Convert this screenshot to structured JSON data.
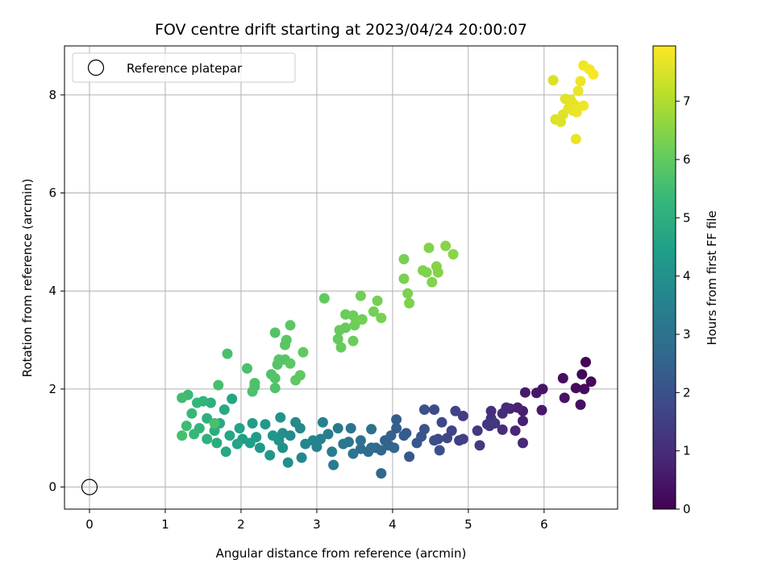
{
  "chart_data": {
    "type": "scatter",
    "title": "FOV centre drift starting at 2023/04/24 20:00:07",
    "xlabel": "Angular distance from reference (arcmin)",
    "ylabel": "Rotation from reference (arcmin)",
    "xlim": [
      -0.33,
      6.97
    ],
    "ylim": [
      -0.45,
      9.0
    ],
    "x_ticks": [
      0,
      1,
      2,
      3,
      4,
      5,
      6
    ],
    "y_ticks": [
      0,
      2,
      4,
      6,
      8
    ],
    "grid": true,
    "legend": {
      "location": "upper left",
      "entries": [
        {
          "label": "Reference platepar",
          "marker": "open-circle"
        }
      ]
    },
    "reference_point": {
      "x": 0,
      "y": 0
    },
    "colorbar": {
      "label": "Hours from first FF file",
      "colormap": "viridis",
      "range": [
        0,
        7.95
      ],
      "ticks": [
        0,
        1,
        2,
        3,
        4,
        5,
        6,
        7
      ]
    },
    "colormap_stops": [
      "#440154",
      "#482878",
      "#3e4989",
      "#31688e",
      "#26828e",
      "#1f9e89",
      "#35b779",
      "#6ece58",
      "#b5de2b",
      "#fde725"
    ],
    "points_columns": [
      "x",
      "y",
      "hours"
    ],
    "points": [
      [
        6.55,
        2.55,
        0.05
      ],
      [
        6.5,
        2.3,
        0.1
      ],
      [
        6.62,
        2.15,
        0.15
      ],
      [
        6.42,
        2.02,
        0.2
      ],
      [
        6.53,
        2.0,
        0.25
      ],
      [
        6.25,
        2.22,
        0.3
      ],
      [
        6.48,
        1.68,
        0.35
      ],
      [
        6.27,
        1.82,
        0.4
      ],
      [
        5.98,
        2.0,
        0.45
      ],
      [
        5.9,
        1.92,
        0.5
      ],
      [
        5.97,
        1.57,
        0.55
      ],
      [
        5.75,
        1.93,
        0.6
      ],
      [
        5.72,
        1.55,
        0.65
      ],
      [
        5.72,
        1.35,
        0.7
      ],
      [
        5.65,
        1.62,
        0.75
      ],
      [
        5.55,
        1.6,
        0.8
      ],
      [
        5.62,
        1.15,
        0.85
      ],
      [
        5.72,
        0.9,
        0.9
      ],
      [
        5.5,
        1.62,
        0.95
      ],
      [
        5.45,
        1.5,
        1.0
      ],
      [
        5.45,
        1.17,
        1.05
      ],
      [
        5.3,
        1.55,
        1.1
      ],
      [
        5.3,
        1.4,
        1.15
      ],
      [
        5.28,
        1.25,
        1.2
      ],
      [
        5.35,
        1.3,
        1.25
      ],
      [
        5.25,
        1.28,
        1.3
      ],
      [
        5.12,
        1.15,
        1.35
      ],
      [
        5.15,
        0.85,
        1.4
      ],
      [
        4.93,
        1.45,
        1.45
      ],
      [
        4.93,
        0.98,
        1.5
      ],
      [
        4.88,
        0.95,
        1.55
      ],
      [
        4.83,
        1.55,
        1.6
      ],
      [
        4.78,
        1.15,
        1.65
      ],
      [
        4.72,
        1.0,
        1.7
      ],
      [
        4.65,
        1.32,
        1.75
      ],
      [
        4.6,
        0.98,
        1.8
      ],
      [
        4.55,
        1.58,
        1.85
      ],
      [
        4.55,
        0.95,
        1.9
      ],
      [
        4.62,
        0.75,
        1.95
      ],
      [
        4.42,
        1.58,
        2.0
      ],
      [
        4.42,
        1.18,
        2.05
      ],
      [
        4.38,
        1.03,
        2.1
      ],
      [
        4.32,
        0.9,
        2.15
      ],
      [
        4.22,
        0.62,
        2.2
      ],
      [
        4.18,
        1.1,
        2.25
      ],
      [
        4.15,
        1.05,
        2.3
      ],
      [
        4.05,
        1.38,
        2.35
      ],
      [
        4.05,
        1.2,
        2.4
      ],
      [
        3.98,
        1.05,
        2.45
      ],
      [
        3.9,
        0.95,
        2.5
      ],
      [
        3.95,
        0.85,
        2.55
      ],
      [
        4.02,
        0.8,
        2.6
      ],
      [
        3.85,
        0.28,
        2.65
      ],
      [
        3.85,
        0.75,
        2.7
      ],
      [
        3.78,
        0.8,
        2.75
      ],
      [
        3.72,
        0.8,
        2.8
      ],
      [
        3.68,
        0.72,
        2.85
      ],
      [
        3.58,
        0.78,
        2.9
      ],
      [
        3.72,
        1.18,
        2.95
      ],
      [
        3.58,
        0.95,
        3.0
      ],
      [
        3.45,
        1.2,
        3.05
      ],
      [
        3.42,
        0.92,
        3.1
      ],
      [
        3.48,
        0.68,
        3.15
      ],
      [
        3.35,
        0.88,
        3.2
      ],
      [
        3.28,
        1.2,
        3.25
      ],
      [
        3.22,
        0.45,
        3.3
      ],
      [
        3.2,
        0.72,
        3.35
      ],
      [
        3.15,
        1.08,
        3.4
      ],
      [
        3.08,
        1.32,
        3.45
      ],
      [
        3.05,
        0.98,
        3.5
      ],
      [
        3.0,
        0.82,
        3.55
      ],
      [
        2.95,
        0.95,
        3.6
      ],
      [
        2.85,
        0.88,
        3.65
      ],
      [
        2.8,
        0.6,
        3.7
      ],
      [
        2.78,
        1.2,
        3.75
      ],
      [
        2.72,
        1.32,
        3.8
      ],
      [
        2.65,
        1.05,
        3.85
      ],
      [
        2.62,
        0.5,
        3.9
      ],
      [
        2.55,
        1.1,
        3.95
      ],
      [
        2.55,
        0.8,
        4.0
      ],
      [
        2.5,
        0.95,
        4.05
      ],
      [
        2.52,
        1.42,
        4.1
      ],
      [
        2.42,
        1.05,
        4.15
      ],
      [
        2.38,
        0.65,
        4.2
      ],
      [
        2.32,
        1.28,
        4.25
      ],
      [
        2.25,
        0.8,
        4.3
      ],
      [
        2.2,
        1.02,
        4.35
      ],
      [
        2.15,
        1.3,
        4.4
      ],
      [
        2.12,
        0.9,
        4.45
      ],
      [
        2.02,
        0.98,
        4.5
      ],
      [
        1.98,
        1.2,
        4.55
      ],
      [
        1.95,
        0.88,
        4.6
      ],
      [
        1.88,
        1.8,
        4.65
      ],
      [
        1.85,
        1.05,
        4.7
      ],
      [
        1.8,
        0.72,
        4.75
      ],
      [
        1.78,
        1.58,
        4.8
      ],
      [
        1.72,
        1.3,
        4.85
      ],
      [
        1.68,
        0.9,
        4.9
      ],
      [
        1.65,
        1.15,
        4.95
      ],
      [
        1.6,
        1.72,
        5.0
      ],
      [
        1.55,
        1.4,
        5.05
      ],
      [
        1.55,
        0.98,
        5.1
      ],
      [
        1.5,
        1.75,
        5.15
      ],
      [
        1.45,
        1.2,
        5.2
      ],
      [
        1.42,
        1.72,
        5.25
      ],
      [
        1.38,
        1.08,
        5.3
      ],
      [
        1.35,
        1.5,
        5.35
      ],
      [
        1.3,
        1.88,
        5.4
      ],
      [
        1.28,
        1.25,
        5.45
      ],
      [
        1.22,
        1.82,
        5.5
      ],
      [
        1.22,
        1.05,
        5.55
      ],
      [
        1.65,
        1.3,
        5.6
      ],
      [
        1.7,
        2.08,
        5.6
      ],
      [
        1.82,
        2.72,
        5.62
      ],
      [
        2.08,
        2.42,
        5.64
      ],
      [
        2.15,
        1.95,
        5.66
      ],
      [
        2.18,
        2.05,
        5.68
      ],
      [
        2.18,
        2.12,
        5.7
      ],
      [
        2.4,
        2.3,
        5.72
      ],
      [
        2.45,
        2.02,
        5.74
      ],
      [
        2.45,
        2.22,
        5.76
      ],
      [
        2.45,
        3.15,
        5.78
      ],
      [
        2.48,
        2.5,
        5.8
      ],
      [
        2.5,
        2.6,
        5.82
      ],
      [
        2.58,
        2.6,
        5.84
      ],
      [
        2.58,
        2.9,
        5.86
      ],
      [
        2.6,
        3.0,
        5.88
      ],
      [
        2.65,
        3.3,
        5.9
      ],
      [
        2.65,
        2.52,
        5.92
      ],
      [
        2.72,
        2.18,
        5.94
      ],
      [
        2.78,
        2.28,
        5.96
      ],
      [
        2.82,
        2.75,
        5.98
      ],
      [
        3.1,
        3.85,
        6.0
      ],
      [
        3.28,
        3.02,
        6.02
      ],
      [
        3.3,
        3.2,
        6.04
      ],
      [
        3.32,
        2.85,
        6.06
      ],
      [
        3.38,
        3.25,
        6.08
      ],
      [
        3.38,
        3.52,
        6.1
      ],
      [
        3.48,
        2.98,
        6.12
      ],
      [
        3.48,
        3.5,
        6.14
      ],
      [
        3.5,
        3.3,
        6.16
      ],
      [
        3.52,
        3.38,
        6.18
      ],
      [
        3.58,
        3.9,
        6.2
      ],
      [
        3.6,
        3.42,
        6.22
      ],
      [
        3.75,
        3.58,
        6.24
      ],
      [
        3.8,
        3.8,
        6.26
      ],
      [
        3.85,
        3.45,
        6.28
      ],
      [
        4.15,
        4.65,
        6.3
      ],
      [
        4.15,
        4.25,
        6.32
      ],
      [
        4.2,
        3.95,
        6.34
      ],
      [
        4.22,
        3.75,
        6.36
      ],
      [
        4.4,
        4.42,
        6.38
      ],
      [
        4.45,
        4.38,
        6.4
      ],
      [
        4.48,
        4.88,
        6.42
      ],
      [
        4.52,
        4.18,
        6.44
      ],
      [
        4.58,
        4.5,
        6.46
      ],
      [
        4.6,
        4.38,
        6.48
      ],
      [
        4.7,
        4.92,
        6.5
      ],
      [
        4.8,
        4.75,
        6.52
      ],
      [
        6.12,
        8.3,
        7.5
      ],
      [
        6.15,
        7.5,
        7.52
      ],
      [
        6.2,
        7.48,
        7.54
      ],
      [
        6.22,
        7.45,
        7.56
      ],
      [
        6.25,
        7.6,
        7.58
      ],
      [
        6.28,
        7.92,
        7.6
      ],
      [
        6.32,
        7.72,
        7.62
      ],
      [
        6.35,
        7.9,
        7.64
      ],
      [
        6.38,
        7.68,
        7.66
      ],
      [
        6.4,
        7.8,
        7.68
      ],
      [
        6.42,
        7.1,
        7.7
      ],
      [
        6.43,
        7.65,
        7.72
      ],
      [
        6.45,
        8.08,
        7.74
      ],
      [
        6.48,
        8.28,
        7.76
      ],
      [
        6.52,
        7.78,
        7.78
      ],
      [
        6.52,
        8.6,
        7.8
      ],
      [
        6.6,
        8.52,
        7.85
      ],
      [
        6.65,
        8.42,
        7.9
      ]
    ]
  }
}
